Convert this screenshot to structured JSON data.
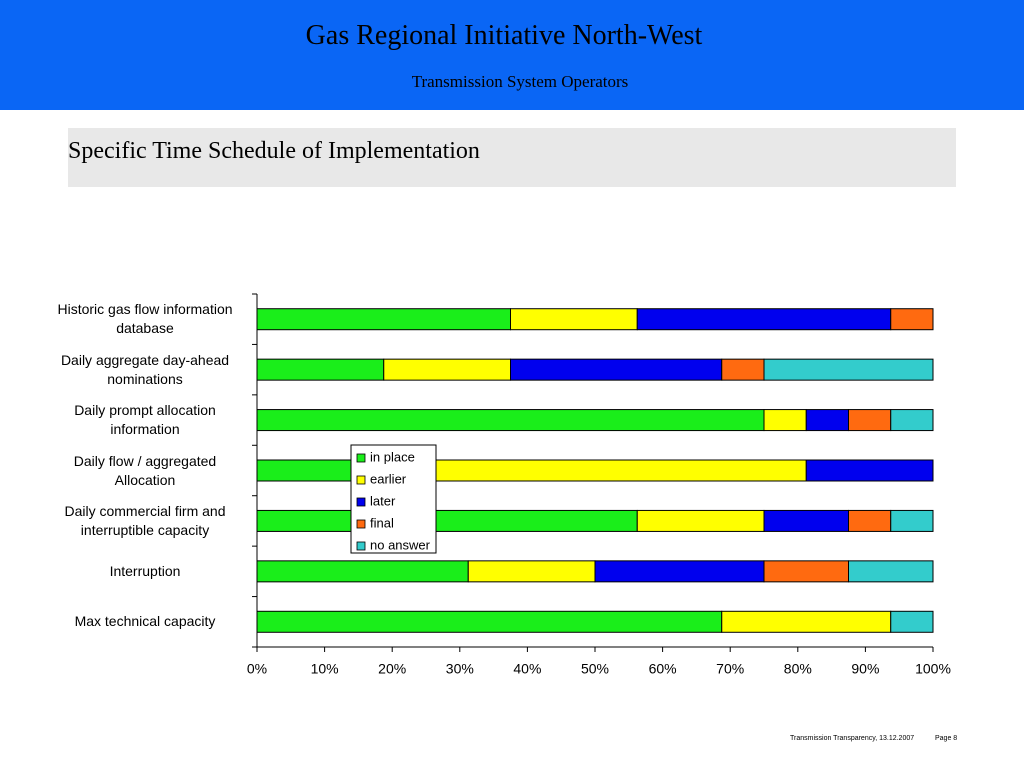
{
  "header": {
    "title": "Gas Regional Initiative North-West",
    "subtitle": "Transmission System Operators",
    "section": "Specific Time Schedule of Implementation"
  },
  "footer": {
    "note": "Transmission Transparency, 13.12.2007",
    "page": "Page 8"
  },
  "chart_data": {
    "type": "bar",
    "stacked": true,
    "horizontal": true,
    "categories": [
      "Historic gas flow information\ndatabase",
      "Daily aggregate day-ahead\nnominations",
      "Daily prompt allocation\ninformation",
      "Daily flow / aggregated\nAllocation",
      "Daily commercial firm and\ninterruptible capacity",
      "Interruption",
      "Max technical capacity"
    ],
    "series": [
      {
        "name": "in place",
        "color": "#1aee1a",
        "values": [
          37.5,
          18.75,
          75,
          25,
          56.25,
          31.25,
          68.75
        ]
      },
      {
        "name": "earlier",
        "color": "#ffff00",
        "values": [
          18.75,
          18.75,
          6.25,
          56.25,
          18.75,
          18.75,
          25
        ]
      },
      {
        "name": "later",
        "color": "#0000ee",
        "values": [
          37.5,
          31.25,
          6.25,
          18.75,
          12.5,
          25,
          0
        ]
      },
      {
        "name": "final",
        "color": "#ff6a10",
        "values": [
          6.25,
          6.25,
          6.25,
          0,
          6.25,
          12.5,
          0
        ]
      },
      {
        "name": "no answer",
        "color": "#33cccc",
        "values": [
          0,
          25,
          6.25,
          0,
          6.25,
          12.5,
          6.25
        ]
      }
    ],
    "xlim": [
      0,
      100
    ],
    "xticks": [
      {
        "value": 0,
        "label": "0%"
      },
      {
        "value": 10,
        "label": "10%"
      },
      {
        "value": 20,
        "label": "20%"
      },
      {
        "value": 30,
        "label": "30%"
      },
      {
        "value": 40,
        "label": "40%"
      },
      {
        "value": 50,
        "label": "50%"
      },
      {
        "value": 60,
        "label": "60%"
      },
      {
        "value": 70,
        "label": "70%"
      },
      {
        "value": 80,
        "label": "80%"
      },
      {
        "value": 90,
        "label": "90%"
      },
      {
        "value": 100,
        "label": "100%"
      }
    ]
  }
}
